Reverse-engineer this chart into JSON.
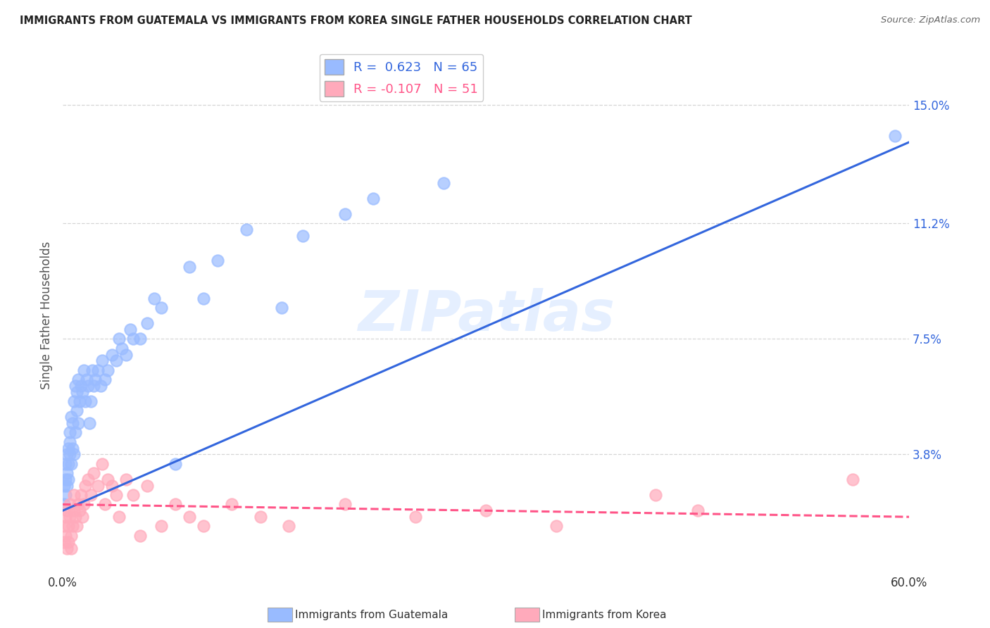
{
  "title": "IMMIGRANTS FROM GUATEMALA VS IMMIGRANTS FROM KOREA SINGLE FATHER HOUSEHOLDS CORRELATION CHART",
  "source": "Source: ZipAtlas.com",
  "ylabel": "Single Father Households",
  "right_yticks": [
    "15.0%",
    "11.2%",
    "7.5%",
    "3.8%"
  ],
  "right_ytick_vals": [
    0.15,
    0.112,
    0.075,
    0.038
  ],
  "legend_blue_R": "R =  0.623",
  "legend_blue_N": "N = 65",
  "legend_pink_R": "R = -0.107",
  "legend_pink_N": "N = 51",
  "blue_color": "#99bbff",
  "pink_color": "#ffaabb",
  "blue_line_color": "#3366dd",
  "pink_line_color": "#ff5588",
  "watermark_text": "ZIPatlas",
  "blue_line_x0": 0.0,
  "blue_line_y0": 0.02,
  "blue_line_x1": 0.6,
  "blue_line_y1": 0.138,
  "pink_line_x0": 0.0,
  "pink_line_y0": 0.022,
  "pink_line_x1": 0.6,
  "pink_line_y1": 0.018,
  "blue_scatter_x": [
    0.001,
    0.001,
    0.002,
    0.002,
    0.002,
    0.003,
    0.003,
    0.003,
    0.004,
    0.004,
    0.004,
    0.005,
    0.005,
    0.005,
    0.006,
    0.006,
    0.007,
    0.007,
    0.008,
    0.008,
    0.009,
    0.009,
    0.01,
    0.01,
    0.011,
    0.011,
    0.012,
    0.013,
    0.014,
    0.015,
    0.016,
    0.017,
    0.018,
    0.019,
    0.02,
    0.021,
    0.022,
    0.023,
    0.025,
    0.027,
    0.028,
    0.03,
    0.032,
    0.035,
    0.038,
    0.04,
    0.042,
    0.045,
    0.048,
    0.05,
    0.055,
    0.06,
    0.065,
    0.07,
    0.08,
    0.09,
    0.1,
    0.11,
    0.13,
    0.155,
    0.17,
    0.2,
    0.22,
    0.27,
    0.59
  ],
  "blue_scatter_y": [
    0.022,
    0.028,
    0.025,
    0.03,
    0.035,
    0.028,
    0.032,
    0.038,
    0.03,
    0.04,
    0.035,
    0.042,
    0.038,
    0.045,
    0.035,
    0.05,
    0.04,
    0.048,
    0.038,
    0.055,
    0.045,
    0.06,
    0.052,
    0.058,
    0.048,
    0.062,
    0.055,
    0.06,
    0.058,
    0.065,
    0.055,
    0.062,
    0.06,
    0.048,
    0.055,
    0.065,
    0.06,
    0.062,
    0.065,
    0.06,
    0.068,
    0.062,
    0.065,
    0.07,
    0.068,
    0.075,
    0.072,
    0.07,
    0.078,
    0.075,
    0.075,
    0.08,
    0.088,
    0.085,
    0.035,
    0.098,
    0.088,
    0.1,
    0.11,
    0.085,
    0.108,
    0.115,
    0.12,
    0.125,
    0.14
  ],
  "pink_scatter_x": [
    0.001,
    0.001,
    0.002,
    0.002,
    0.003,
    0.003,
    0.004,
    0.004,
    0.005,
    0.005,
    0.006,
    0.006,
    0.007,
    0.008,
    0.008,
    0.009,
    0.01,
    0.011,
    0.012,
    0.013,
    0.014,
    0.015,
    0.016,
    0.018,
    0.02,
    0.022,
    0.025,
    0.028,
    0.03,
    0.032,
    0.035,
    0.038,
    0.04,
    0.045,
    0.05,
    0.055,
    0.06,
    0.07,
    0.08,
    0.09,
    0.1,
    0.12,
    0.14,
    0.16,
    0.2,
    0.25,
    0.3,
    0.35,
    0.42,
    0.45,
    0.56
  ],
  "pink_scatter_y": [
    0.015,
    0.01,
    0.018,
    0.012,
    0.02,
    0.008,
    0.015,
    0.01,
    0.018,
    0.022,
    0.012,
    0.008,
    0.015,
    0.02,
    0.025,
    0.018,
    0.015,
    0.022,
    0.02,
    0.025,
    0.018,
    0.022,
    0.028,
    0.03,
    0.025,
    0.032,
    0.028,
    0.035,
    0.022,
    0.03,
    0.028,
    0.025,
    0.018,
    0.03,
    0.025,
    0.012,
    0.028,
    0.015,
    0.022,
    0.018,
    0.015,
    0.022,
    0.018,
    0.015,
    0.022,
    0.018,
    0.02,
    0.015,
    0.025,
    0.02,
    0.03
  ],
  "xlim": [
    0.0,
    0.6
  ],
  "ylim": [
    0.0,
    0.165
  ]
}
